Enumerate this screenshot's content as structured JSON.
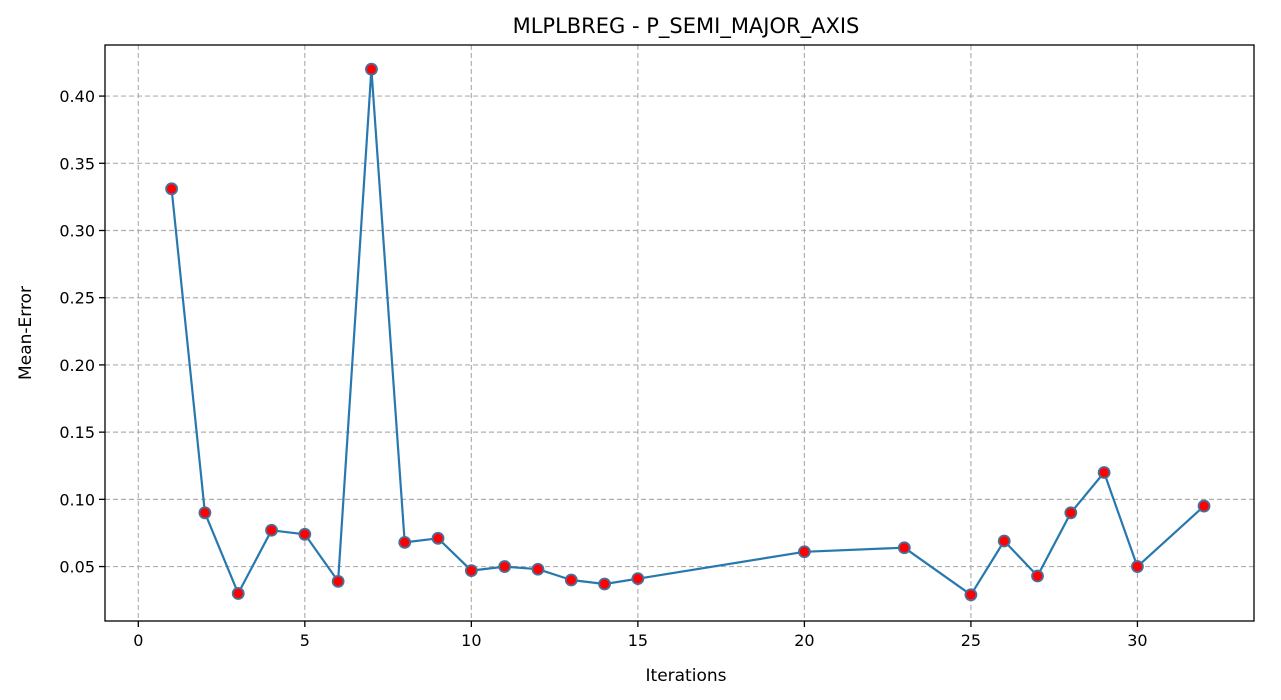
{
  "chart_data": {
    "type": "line",
    "title": "MLPLBREG - P_SEMI_MAJOR_AXIS",
    "xlabel": "Iterations",
    "ylabel": "Mean-Error",
    "xlim": [
      -1,
      33.5
    ],
    "ylim": [
      0.0095,
      0.438
    ],
    "xticks": [
      0,
      5,
      10,
      15,
      20,
      25,
      30
    ],
    "yticks": [
      0.05,
      0.1,
      0.15,
      0.2,
      0.25,
      0.3,
      0.35,
      0.4
    ],
    "xtick_labels": [
      "0",
      "5",
      "10",
      "15",
      "20",
      "25",
      "30"
    ],
    "ytick_labels": [
      "0.05",
      "0.10",
      "0.15",
      "0.20",
      "0.25",
      "0.30",
      "0.35",
      "0.40"
    ],
    "grid": true,
    "line_color": "#2878b0",
    "marker_fill": "#ff0000",
    "marker_edge": "#4a6f9a",
    "series": [
      {
        "x": [
          1,
          2,
          3,
          4,
          5,
          6,
          7,
          8,
          9,
          10,
          11,
          12,
          13,
          14,
          15,
          20,
          23,
          25,
          26,
          27,
          28,
          29,
          30,
          32
        ],
        "y": [
          0.331,
          0.09,
          0.03,
          0.077,
          0.074,
          0.039,
          0.42,
          0.068,
          0.071,
          0.047,
          0.05,
          0.048,
          0.04,
          0.037,
          0.041,
          0.061,
          0.064,
          0.029,
          0.069,
          0.043,
          0.09,
          0.12,
          0.05,
          0.095
        ]
      }
    ]
  }
}
